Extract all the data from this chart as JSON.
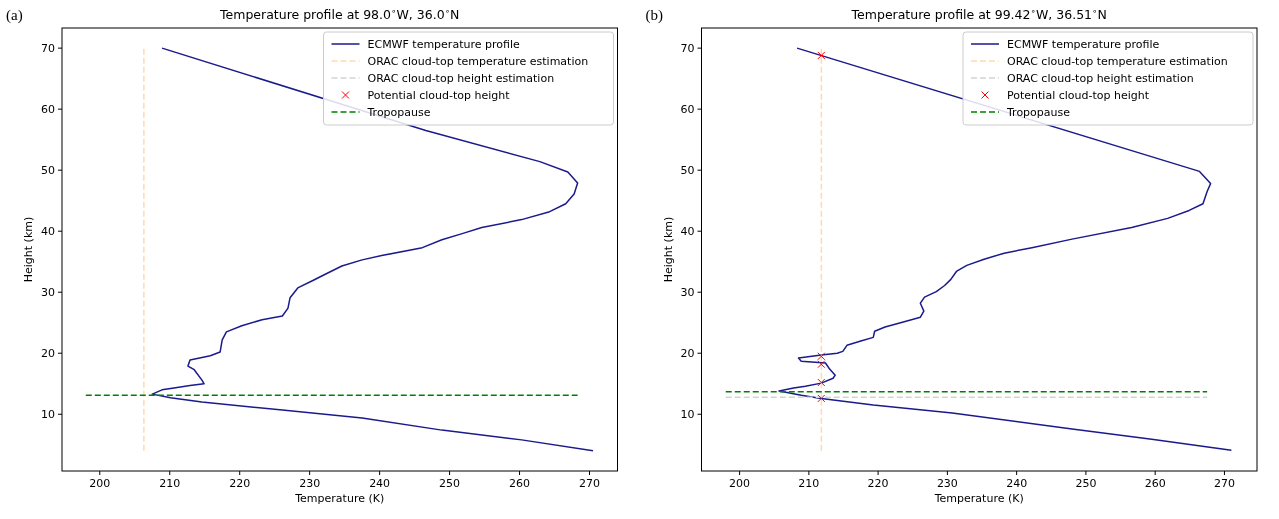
{
  "chart_data": [
    {
      "type": "line",
      "title": "Temperature profile at 98.0$^{∘}$W, 36.0$^{∘}$N",
      "xlabel": "Temperature (K)",
      "ylabel": "Height (km)",
      "annotations": [
        "(a)"
      ],
      "xlim": [
        194.6,
        274
      ],
      "ylim": [
        0.7,
        73.3
      ],
      "xticks": [
        200,
        210,
        220,
        230,
        240,
        250,
        260,
        270
      ],
      "yticks": [
        10,
        20,
        30,
        40,
        50,
        60,
        70
      ],
      "legend": "top right",
      "series": [
        {
          "name": "ECMWF temperature profile",
          "type": "line",
          "color": "#1a1a8c",
          "line_style": "solid",
          "x": [
            208.9,
            246.6,
            262.9,
            266.9,
            268.3,
            267.8,
            266.6,
            264.3,
            260.3,
            254.6,
            251.8,
            248.9,
            246.1,
            240.3,
            237.5,
            234.6,
            231.8,
            230.6,
            228.3,
            227.2,
            226.9,
            226.1,
            223.2,
            220.3,
            218.1,
            217.5,
            217.2,
            215.8,
            212.9,
            212.6,
            213.5,
            214.6,
            214.9,
            212.9,
            210.6,
            208.9,
            207.5,
            210.1,
            214.6,
            226.1,
            237.5,
            248.9,
            260.3,
            270.5
          ],
          "values": [
            70,
            56.5,
            51.4,
            49.7,
            47.9,
            46.1,
            44.5,
            43.2,
            41.9,
            40.6,
            39.6,
            38.6,
            37.3,
            36,
            35.3,
            34.3,
            32.7,
            32,
            30.7,
            29.1,
            27.4,
            26.1,
            25.5,
            24.5,
            23.5,
            22.2,
            20.2,
            19.6,
            18.9,
            17.9,
            17.3,
            15.6,
            15,
            14.7,
            14.3,
            14,
            13.3,
            12.7,
            12,
            10.7,
            9.4,
            7.4,
            5.8,
            4
          ]
        },
        {
          "name": "ORAC cloud-top temperature estimation",
          "type": "line",
          "color": "#ffdab0",
          "line_style": "dashed",
          "x": [
            206.3,
            206.3
          ],
          "values": [
            4,
            70
          ]
        },
        {
          "name": "ORAC cloud-top height estimation",
          "color": "#d3d3d3",
          "line_style": "dashed"
        },
        {
          "name": "Potential cloud-top height",
          "type": "scatter",
          "color": "#ff0000",
          "marker": "cross"
        },
        {
          "name": "Tropopause",
          "type": "line",
          "color": "#008000",
          "line_style": "dashed",
          "x": [
            198,
            268.3
          ],
          "values": [
            13.1,
            13.1
          ]
        }
      ]
    },
    {
      "type": "line",
      "title": "Temperature profile at 99.42$^{∘}$W, 36.51$^{∘}$N",
      "xlabel": "Temperature (K)",
      "ylabel": "Height (km)",
      "annotations": [
        "(b)"
      ],
      "xlim": [
        194.5,
        274.7
      ],
      "ylim": [
        0.7,
        73.3
      ],
      "xticks": [
        200,
        210,
        220,
        230,
        240,
        250,
        260,
        270
      ],
      "yticks": [
        10,
        20,
        30,
        40,
        50,
        60,
        70
      ],
      "legend": "top right",
      "series": [
        {
          "name": "ECMWF temperature profile",
          "color": "#1a1a8c",
          "line_style": "solid",
          "x": [
            208.3,
            261.8,
            266.4,
            268,
            267.5,
            266.9,
            264.9,
            261.8,
            256.6,
            248,
            242.2,
            238.2,
            235.3,
            232.8,
            231.3,
            230.5,
            229.6,
            228.4,
            226.7,
            226.1,
            226.6,
            226.1,
            223.9,
            221,
            219.5,
            219.3,
            217.5,
            215.5,
            214.9,
            214.1,
            211.8,
            208.5,
            208.9,
            212.4,
            213,
            213.8,
            213.5,
            211.8,
            209.5,
            207.8,
            205.7,
            208.9,
            211.8,
            219.3,
            230.7,
            248,
            259.5,
            271
          ],
          "values": [
            70,
            51.4,
            49.8,
            47.8,
            46.5,
            44.5,
            43.4,
            42.1,
            40.6,
            38.7,
            37.3,
            36.4,
            35.4,
            34.4,
            33.4,
            32.1,
            31.1,
            30.1,
            29.2,
            28.2,
            26.9,
            25.9,
            25.2,
            24.3,
            23.6,
            22.6,
            22,
            21.3,
            20.3,
            20,
            19.7,
            19.2,
            18.7,
            18.4,
            17.4,
            16.4,
            15.9,
            15.1,
            14.6,
            14.3,
            13.8,
            13.1,
            12.6,
            11.5,
            10.2,
            7.6,
            5.9,
            4.1
          ]
        },
        {
          "name": "ORAC cloud-top temperature estimation",
          "color": "#ffdab0",
          "line_style": "dashed",
          "x": [
            211.8,
            211.8
          ],
          "values": [
            4,
            70
          ]
        },
        {
          "name": "ORAC cloud-top height estimation",
          "color": "#d3d3d3",
          "line_style": "dashed",
          "x": [
            198,
            267.5
          ],
          "values": [
            12.8,
            12.8
          ]
        },
        {
          "name": "Potential cloud-top height",
          "type": "scatter",
          "color": "#ff0000",
          "marker": "cross",
          "x": [
            211.8,
            211.8,
            211.8,
            211.8,
            211.8
          ],
          "values": [
            68.8,
            19.5,
            18.2,
            15.2,
            12.6
          ]
        },
        {
          "name": "Tropopause",
          "color": "#008000",
          "line_style": "dashed",
          "x": [
            198,
            267.5
          ],
          "values": [
            13.7,
            13.7
          ]
        }
      ]
    }
  ]
}
